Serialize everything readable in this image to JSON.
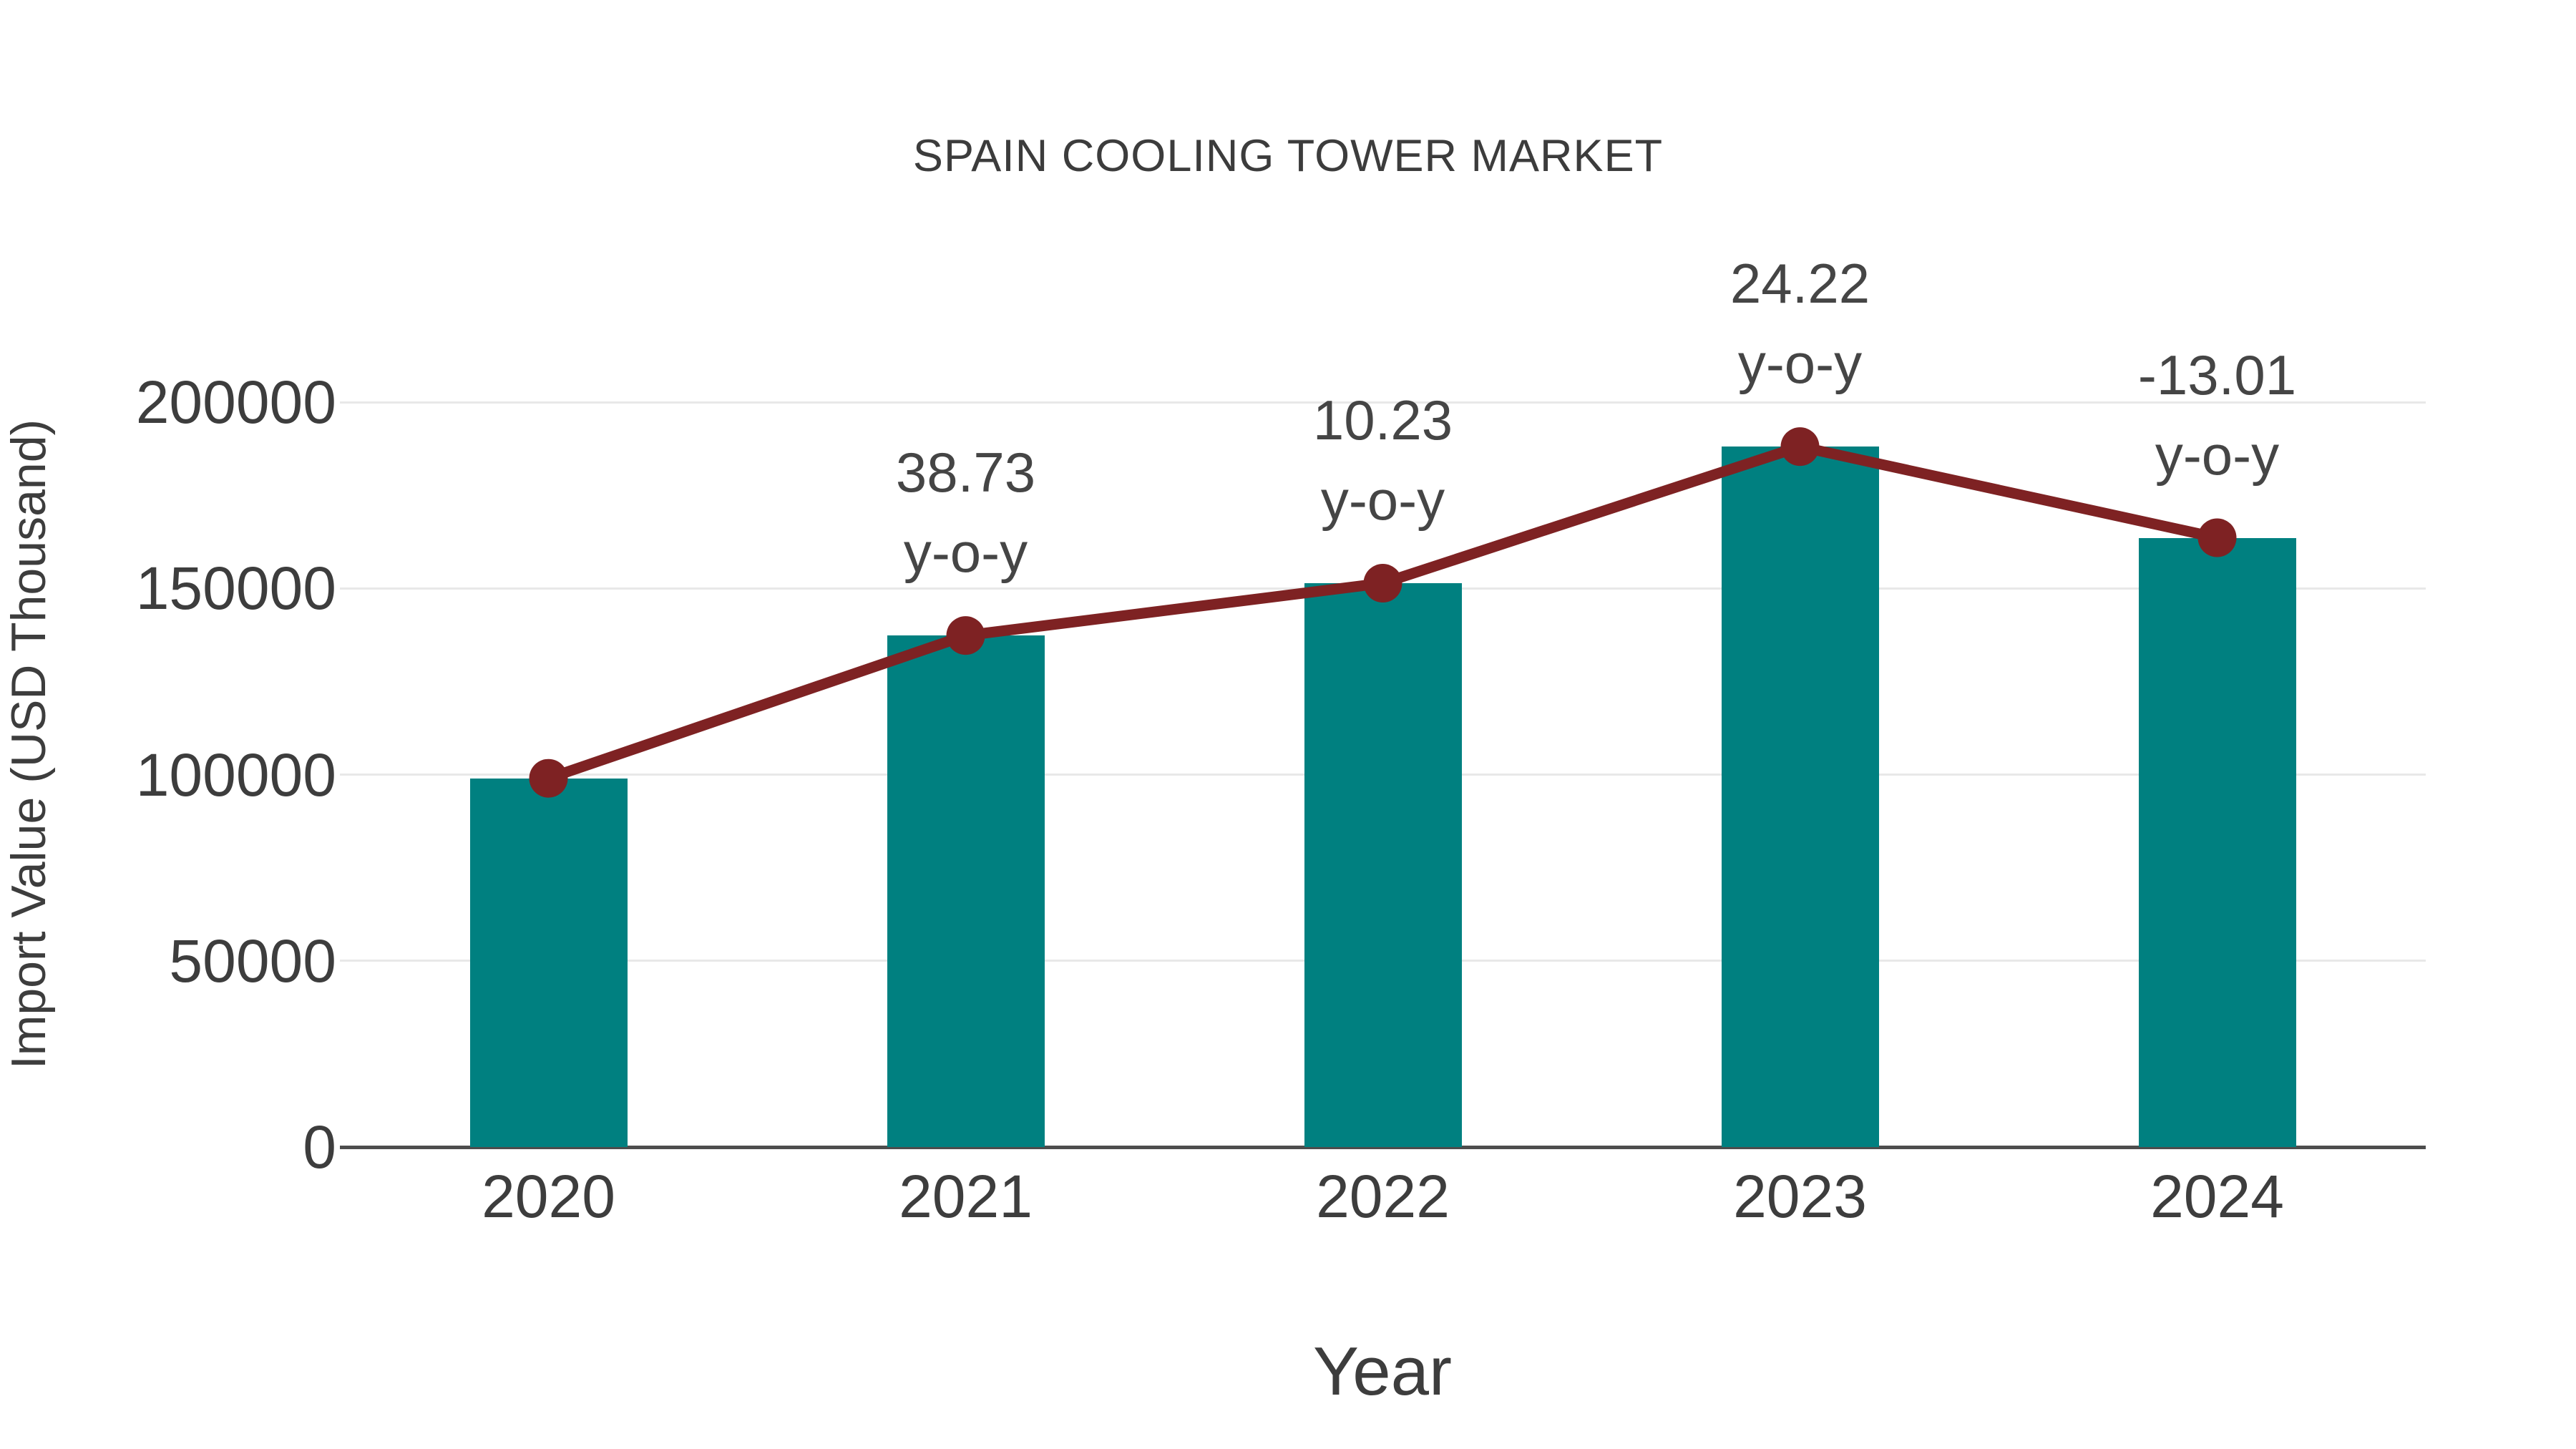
{
  "chart_data": {
    "type": "bar",
    "subtype": "bar-with-line-overlay",
    "title": "SPAIN COOLING TOWER MARKET",
    "xlabel": "Year",
    "ylabel": "Import Value (USD Thousand)",
    "categories": [
      "2020",
      "2021",
      "2022",
      "2023",
      "2024"
    ],
    "series": [
      {
        "name": "Import Value bars",
        "type": "bar",
        "color": "#008080",
        "values": [
          99000,
          137340,
          151390,
          188060,
          163590
        ]
      },
      {
        "name": "Import Value trend line",
        "type": "line",
        "color": "#7e2223",
        "values": [
          99000,
          137340,
          151390,
          188060,
          163590
        ]
      }
    ],
    "yoy_annotations": [
      {
        "category": "2020",
        "line1": null,
        "line2": null
      },
      {
        "category": "2021",
        "line1": "38.73",
        "line2": "y-o-y"
      },
      {
        "category": "2022",
        "line1": "10.23",
        "line2": "y-o-y"
      },
      {
        "category": "2023",
        "line1": "24.22",
        "line2": "y-o-y"
      },
      {
        "category": "2024",
        "line1": "-13.01",
        "line2": "y-o-y"
      }
    ],
    "yticks": [
      0,
      50000,
      100000,
      150000,
      200000
    ],
    "ytick_labels": [
      "0",
      "50000",
      "100000",
      "150000",
      "200000"
    ],
    "ylim": [
      0,
      210000
    ],
    "grid": true,
    "legend_position": "none",
    "colors": {
      "bar": "#008080",
      "line": "#7e2223",
      "marker": "#7e2223",
      "gridline": "#e8e8e8",
      "axis_line": "#4d4d4d",
      "text": "#3d3d3d",
      "background": "#ffffff"
    }
  }
}
